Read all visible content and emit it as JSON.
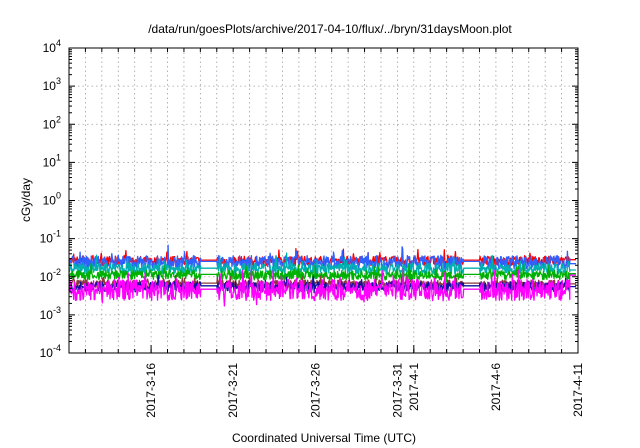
{
  "chart_data": {
    "type": "line",
    "title": "/data/run/goesPlots/archive/2017-04-10/flux/../bryn/31daysMoon.plot",
    "xlabel": "Coordinated Universal Time (UTC)",
    "ylabel": "cGy/day",
    "x_range": [
      "2017-03-11",
      "2017-04-11"
    ],
    "y_range": [
      0.0001,
      10000
    ],
    "y_scale": "log",
    "grid": true,
    "x_ticks": [
      "2017-3-16",
      "2017-3-21",
      "2017-3-26",
      "2017-3-31",
      "2017-4-1",
      "2017-4-6",
      "2017-4-11"
    ],
    "y_ticks": [
      {
        "base": "10",
        "exp": "-4",
        "value": 0.0001
      },
      {
        "base": "10",
        "exp": "-3",
        "value": 0.001
      },
      {
        "base": "10",
        "exp": "-2",
        "value": 0.01
      },
      {
        "base": "10",
        "exp": "-1",
        "value": 0.1
      },
      {
        "base": "10",
        "exp": "0",
        "value": 1
      },
      {
        "base": "10",
        "exp": "1",
        "value": 10
      },
      {
        "base": "10",
        "exp": "2",
        "value": 100
      },
      {
        "base": "10",
        "exp": "3",
        "value": 1000
      },
      {
        "base": "10",
        "exp": "4",
        "value": 10000
      }
    ],
    "series": [
      {
        "color": "#ff0000",
        "base": 0.026,
        "noise": 0.25,
        "end": 0.028
      },
      {
        "color": "#3060ff",
        "base": 0.024,
        "noise": 0.35,
        "end": 0.022
      },
      {
        "color": "#00b0b0",
        "base": 0.016,
        "noise": 0.3,
        "end": 0.015
      },
      {
        "color": "#00b000",
        "base": 0.011,
        "noise": 0.25,
        "end": 0.012
      },
      {
        "color": "#8b3a3a",
        "base": 0.0065,
        "noise": 0.2,
        "end": 0.0065
      },
      {
        "color": "#1010a0",
        "base": 0.0055,
        "noise": 0.25,
        "end": 0.0055
      },
      {
        "color": "#ff00ff",
        "base": 0.0045,
        "noise": 0.55,
        "end": 0.011
      }
    ],
    "gaps": [
      [
        "2017-03-19",
        "2017-03-20"
      ],
      [
        "2017-04-04",
        "2017-04-05"
      ]
    ]
  }
}
